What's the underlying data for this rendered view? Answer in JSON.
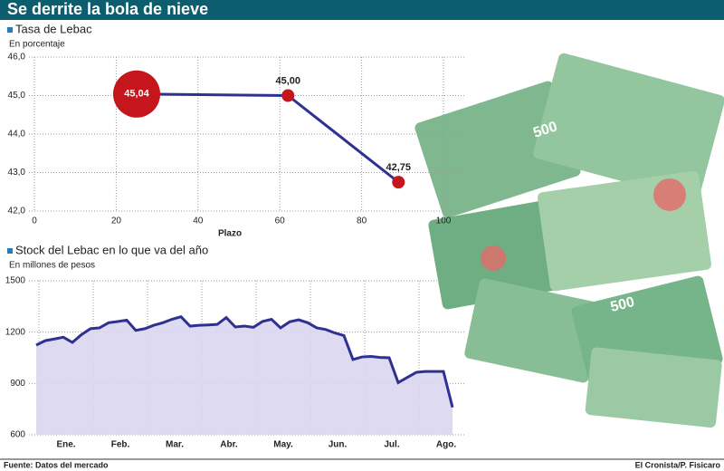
{
  "title": "Se derrite la bola de nieve",
  "chart_data": [
    {
      "type": "line",
      "title": "Tasa de Lebac",
      "subtitle": "En porcentaje",
      "x_label": "Plazo",
      "x": [
        25,
        62,
        89
      ],
      "values": [
        45.04,
        45.0,
        42.75
      ],
      "value_labels": [
        "45,04",
        "45,00",
        "42,75"
      ],
      "color": "#2e3192",
      "marker_color": "#c4161c",
      "xlim": [
        0,
        100
      ],
      "xticks": [
        0,
        20,
        40,
        60,
        80,
        100
      ],
      "ylim": [
        42,
        46
      ],
      "yticks": [
        {
          "value": 42,
          "label": "42,0"
        },
        {
          "value": 43,
          "label": "43,0"
        },
        {
          "value": 44,
          "label": "44,0"
        },
        {
          "value": 45,
          "label": "45,0"
        },
        {
          "value": 46,
          "label": "46,0"
        }
      ],
      "grid": true
    },
    {
      "type": "area",
      "title": "Stock del Lebac en lo que va del año",
      "subtitle": "En millones de pesos",
      "x_labels": [
        "Ene.",
        "Feb.",
        "Mar.",
        "Abr.",
        "May.",
        "Jun.",
        "Jul.",
        "Ago."
      ],
      "values": [
        1124,
        1150,
        1160,
        1170,
        1140,
        1185,
        1220,
        1225,
        1255,
        1262,
        1270,
        1210,
        1220,
        1240,
        1255,
        1275,
        1290,
        1235,
        1240,
        1242,
        1245,
        1285,
        1230,
        1235,
        1228,
        1262,
        1275,
        1225,
        1260,
        1272,
        1255,
        1225,
        1215,
        1195,
        1180,
        1040,
        1055,
        1058,
        1052,
        1050,
        905,
        935,
        965,
        970,
        970,
        970,
        760
      ],
      "color": "#2e3192",
      "fill": "#d9d6ef",
      "ylim": [
        600,
        1500
      ],
      "yticks": [
        600,
        900,
        1200,
        1500
      ],
      "grid": true
    }
  ],
  "source": "Fuente: Datos del mercado",
  "credit": "El Cronista/P. Fisicaro"
}
